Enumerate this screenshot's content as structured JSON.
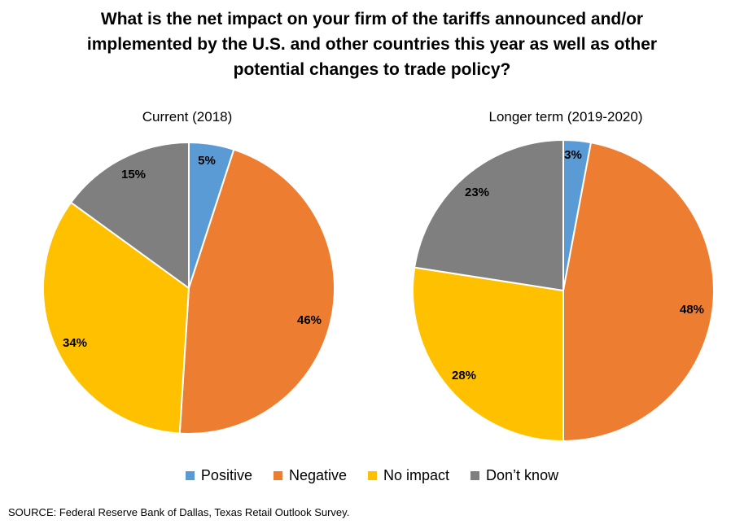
{
  "chart_data": [
    {
      "type": "pie",
      "title": "What is the net impact on your firm of the tariffs announced and/or implemented by the U.S. and other countries this year as well as other potential changes to trade policy?",
      "subtitle": "Current (2018)",
      "categories": [
        "Positive",
        "Negative",
        "No impact",
        "Don’t know"
      ],
      "values": [
        5,
        46,
        34,
        15
      ],
      "labels": [
        "5%",
        "46%",
        "34%",
        "15%"
      ]
    },
    {
      "type": "pie",
      "subtitle": "Longer term (2019-2020)",
      "categories": [
        "Positive",
        "Negative",
        "No impact",
        "Don’t know"
      ],
      "values": [
        3,
        48,
        28,
        23
      ],
      "labels": [
        "3%",
        "48%",
        "28%",
        "23%"
      ]
    }
  ],
  "colors": {
    "Positive": "#5B9BD5",
    "Negative": "#ED7D31",
    "No impact": "#FFC000",
    "Don’t know": "#7F7F7F"
  },
  "legend": {
    "position": "bottom",
    "items": [
      "Positive",
      "Negative",
      "No impact",
      "Don’t know"
    ]
  },
  "source": "SOURCE: Federal Reserve Bank of Dallas, Texas Retail Outlook Survey."
}
